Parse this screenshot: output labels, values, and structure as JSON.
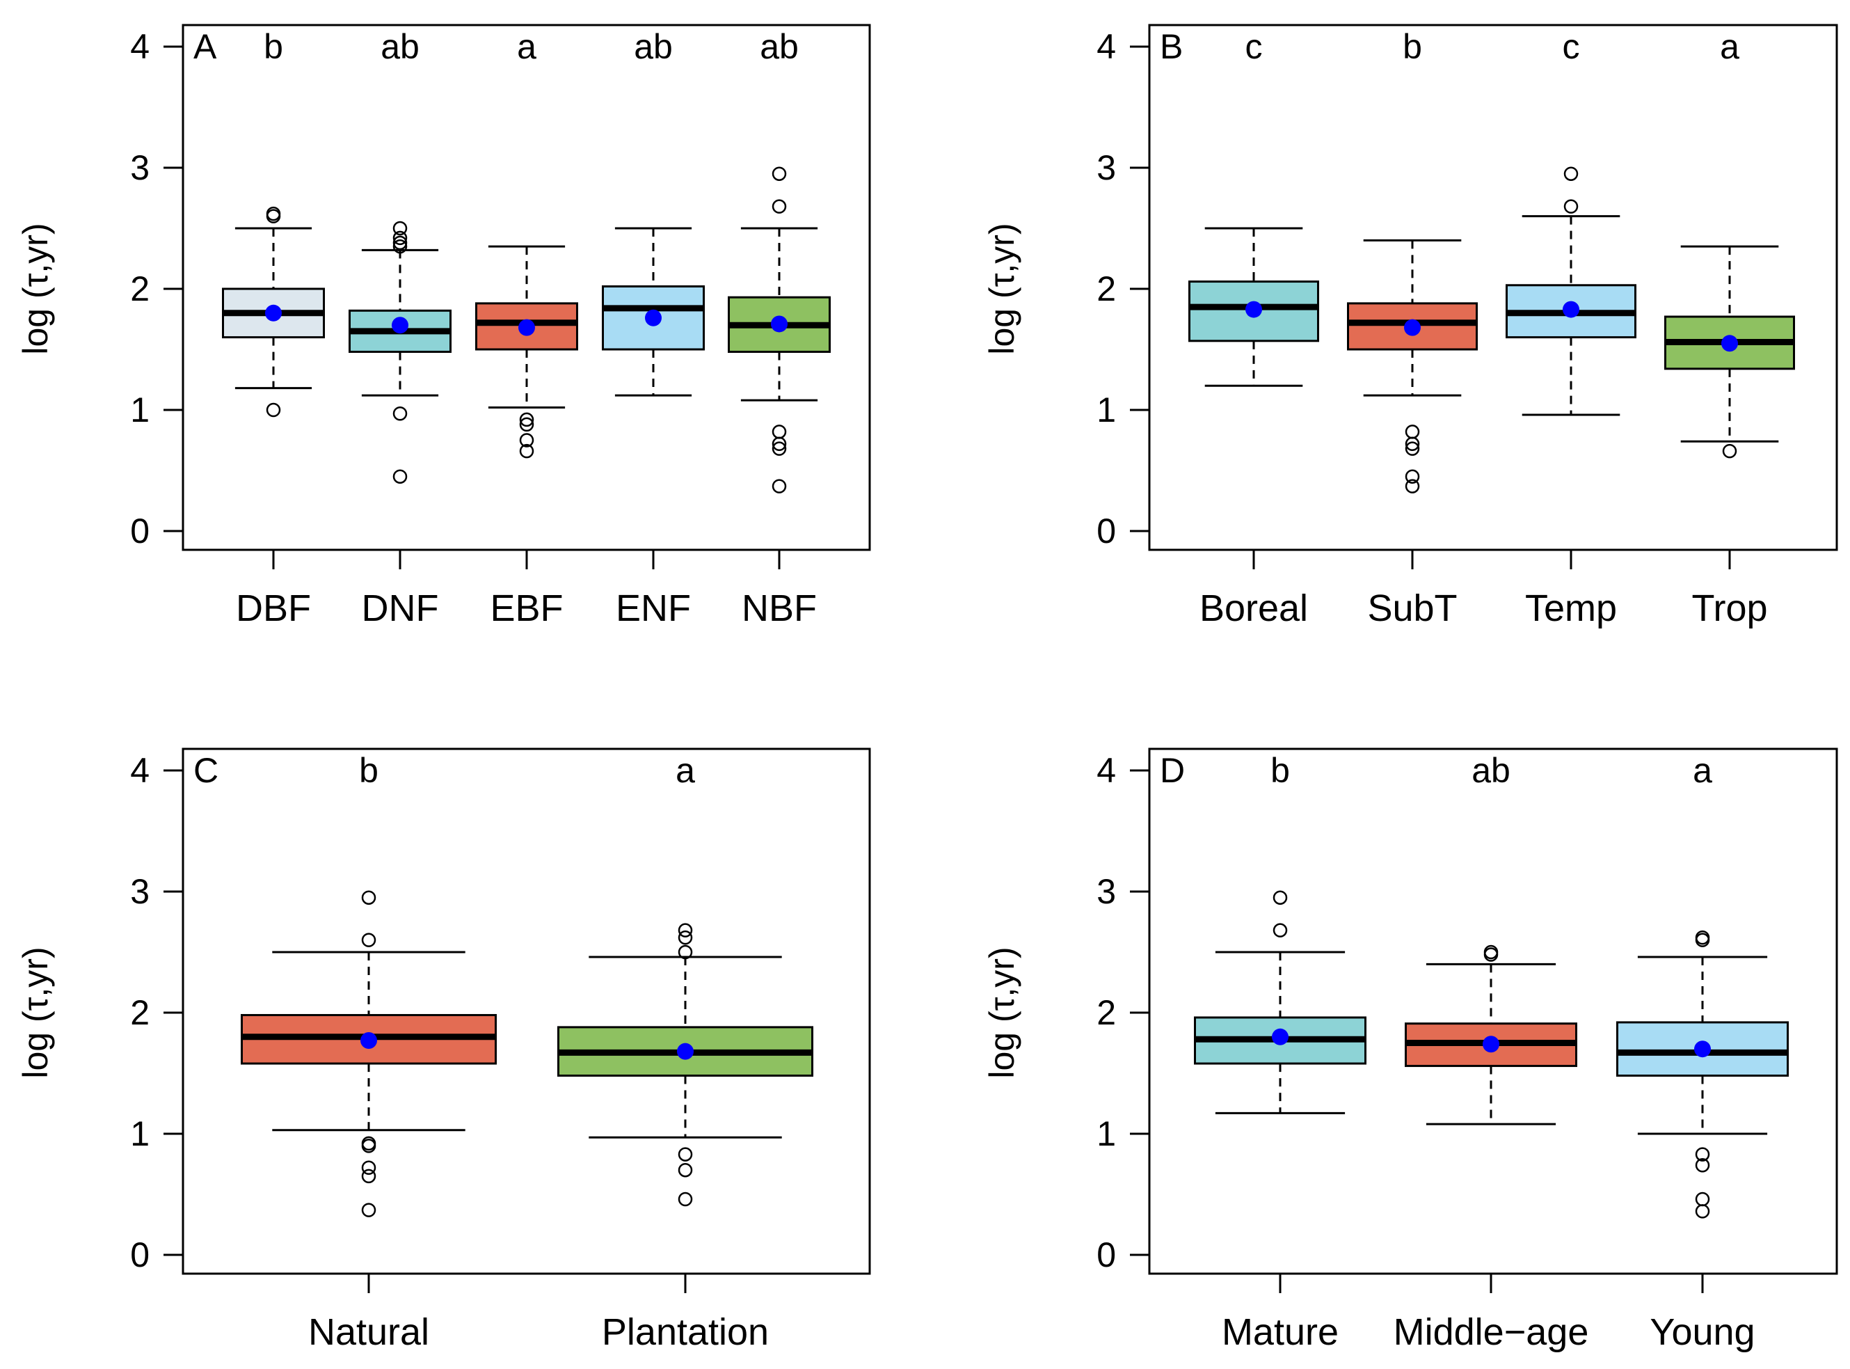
{
  "colors": {
    "lightgray": "#dde7ee",
    "teal": "#8dd3d6",
    "coral": "#e36c53",
    "lightblue": "#a8dcf4",
    "green": "#8ec161",
    "mean": "#0000ff"
  },
  "chart_data": [
    {
      "type": "box",
      "panel": "A",
      "ylabel": "log (τ,yr)",
      "ylim": [
        0,
        4
      ],
      "yticks": [
        "0",
        "1",
        "2",
        "3",
        "4"
      ],
      "categories": [
        "DBF",
        "DNF",
        "EBF",
        "ENF",
        "NBF"
      ],
      "letters": [
        "b",
        "ab",
        "a",
        "ab",
        "ab"
      ],
      "boxes": [
        {
          "color": "lightgray",
          "lower_whisker": 1.18,
          "q1": 1.6,
          "median": 1.8,
          "q3": 2.0,
          "upper_whisker": 2.5,
          "mean": 1.8,
          "outliers": [
            1.0,
            2.6,
            2.62
          ]
        },
        {
          "color": "teal",
          "lower_whisker": 1.12,
          "q1": 1.48,
          "median": 1.65,
          "q3": 1.82,
          "upper_whisker": 2.32,
          "mean": 1.7,
          "outliers": [
            0.45,
            0.97,
            2.35,
            2.38,
            2.42,
            2.5
          ]
        },
        {
          "color": "coral",
          "lower_whisker": 1.02,
          "q1": 1.5,
          "median": 1.72,
          "q3": 1.88,
          "upper_whisker": 2.35,
          "mean": 1.68,
          "outliers": [
            0.66,
            0.75,
            0.88,
            0.92
          ]
        },
        {
          "color": "lightblue",
          "lower_whisker": 1.12,
          "q1": 1.5,
          "median": 1.84,
          "q3": 2.02,
          "upper_whisker": 2.5,
          "mean": 1.76,
          "outliers": []
        },
        {
          "color": "green",
          "lower_whisker": 1.08,
          "q1": 1.48,
          "median": 1.7,
          "q3": 1.93,
          "upper_whisker": 2.5,
          "mean": 1.71,
          "outliers": [
            0.37,
            0.68,
            0.72,
            0.82,
            2.68,
            2.95
          ]
        }
      ]
    },
    {
      "type": "box",
      "panel": "B",
      "ylabel": "log (τ,yr)",
      "ylim": [
        0,
        4
      ],
      "yticks": [
        "0",
        "1",
        "2",
        "3",
        "4"
      ],
      "categories": [
        "Boreal",
        "SubT",
        "Temp",
        "Trop"
      ],
      "letters": [
        "c",
        "b",
        "c",
        "a"
      ],
      "boxes": [
        {
          "color": "teal",
          "lower_whisker": 1.2,
          "q1": 1.57,
          "median": 1.85,
          "q3": 2.06,
          "upper_whisker": 2.5,
          "mean": 1.83,
          "outliers": []
        },
        {
          "color": "coral",
          "lower_whisker": 1.12,
          "q1": 1.5,
          "median": 1.72,
          "q3": 1.88,
          "upper_whisker": 2.4,
          "mean": 1.68,
          "outliers": [
            0.37,
            0.45,
            0.68,
            0.72,
            0.82
          ]
        },
        {
          "color": "lightblue",
          "lower_whisker": 0.96,
          "q1": 1.6,
          "median": 1.8,
          "q3": 2.03,
          "upper_whisker": 2.6,
          "mean": 1.83,
          "outliers": [
            2.68,
            2.95
          ]
        },
        {
          "color": "green",
          "lower_whisker": 0.74,
          "q1": 1.34,
          "median": 1.56,
          "q3": 1.77,
          "upper_whisker": 2.35,
          "mean": 1.55,
          "outliers": [
            0.66
          ]
        }
      ]
    },
    {
      "type": "box",
      "panel": "C",
      "ylabel": "log (τ,yr)",
      "ylim": [
        0,
        4
      ],
      "yticks": [
        "0",
        "1",
        "2",
        "3",
        "4"
      ],
      "categories": [
        "Natural",
        "Plantation"
      ],
      "letters": [
        "b",
        "a"
      ],
      "boxes": [
        {
          "color": "coral",
          "lower_whisker": 1.03,
          "q1": 1.58,
          "median": 1.8,
          "q3": 1.98,
          "upper_whisker": 2.5,
          "mean": 1.77,
          "outliers": [
            0.37,
            0.65,
            0.72,
            0.9,
            0.92,
            2.6,
            2.95
          ]
        },
        {
          "color": "green",
          "lower_whisker": 0.97,
          "q1": 1.48,
          "median": 1.67,
          "q3": 1.88,
          "upper_whisker": 2.46,
          "mean": 1.68,
          "outliers": [
            0.46,
            0.7,
            0.83,
            2.5,
            2.62,
            2.68
          ]
        }
      ]
    },
    {
      "type": "box",
      "panel": "D",
      "ylabel": "log (τ,yr)",
      "ylim": [
        0,
        4
      ],
      "yticks": [
        "0",
        "1",
        "2",
        "3",
        "4"
      ],
      "categories": [
        "Mature",
        "Middle−age",
        "Young"
      ],
      "letters": [
        "b",
        "ab",
        "a"
      ],
      "boxes": [
        {
          "color": "teal",
          "lower_whisker": 1.17,
          "q1": 1.58,
          "median": 1.78,
          "q3": 1.96,
          "upper_whisker": 2.5,
          "mean": 1.8,
          "outliers": [
            2.68,
            2.95
          ]
        },
        {
          "color": "coral",
          "lower_whisker": 1.08,
          "q1": 1.56,
          "median": 1.75,
          "q3": 1.91,
          "upper_whisker": 2.4,
          "mean": 1.74,
          "outliers": [
            2.48,
            2.5
          ]
        },
        {
          "color": "lightblue",
          "lower_whisker": 1.0,
          "q1": 1.48,
          "median": 1.67,
          "q3": 1.92,
          "upper_whisker": 2.46,
          "mean": 1.7,
          "outliers": [
            0.36,
            0.46,
            0.74,
            0.83,
            2.6,
            2.62
          ]
        }
      ]
    }
  ]
}
